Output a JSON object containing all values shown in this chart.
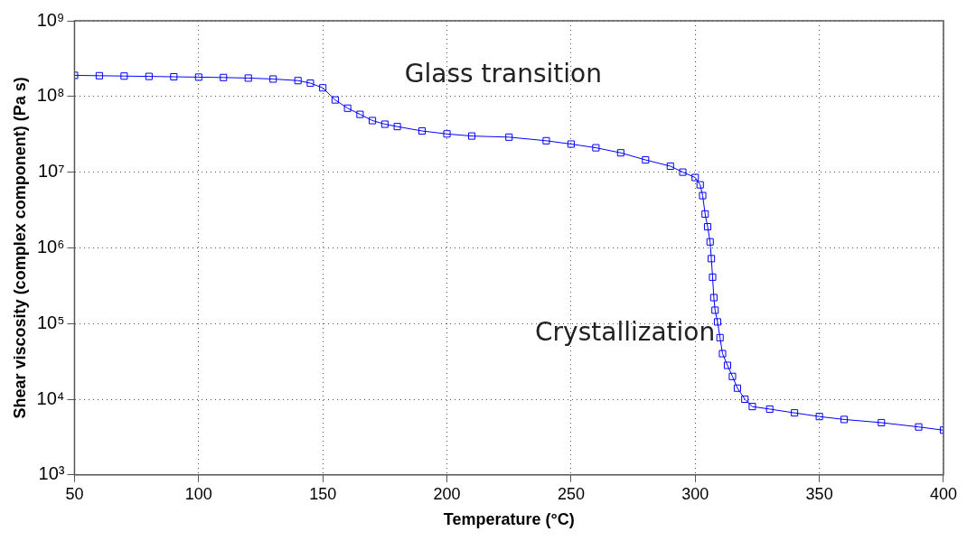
{
  "chart_data": {
    "type": "line",
    "xlabel": "Temperature (°C)",
    "ylabel": "Shear viscosity (complex component) (Pa s)",
    "x": [
      50,
      60,
      70,
      80,
      90,
      100,
      110,
      120,
      130,
      140,
      145,
      150,
      155,
      160,
      165,
      170,
      175,
      180,
      190,
      200,
      210,
      225,
      240,
      250,
      260,
      270,
      280,
      290,
      295,
      300,
      302,
      303,
      304,
      305,
      306,
      306.5,
      307,
      307.5,
      308,
      309,
      310,
      311,
      313,
      315,
      317,
      320,
      323,
      330,
      340,
      350,
      360,
      375,
      390,
      400
    ],
    "series": [
      {
        "color": "#0000ff",
        "values": [
          190000000,
          188000000,
          186000000,
          184000000,
          182000000,
          180000000,
          178000000,
          175000000,
          170000000,
          162000000,
          150000000,
          130000000,
          90000000,
          70000000,
          58000000,
          48000000,
          43000000,
          40000000,
          35000000,
          32000000,
          30000000,
          29000000,
          26000000,
          23500000,
          21000000,
          18000000,
          14500000,
          12000000,
          10000000,
          8500000,
          6800000,
          4900000,
          2800000,
          1900000,
          1200000,
          720000,
          410000,
          220000,
          150000,
          105000,
          65000,
          40000,
          28000,
          20000,
          14000,
          10000,
          8000,
          7400,
          6600,
          5900,
          5400,
          4900,
          4300,
          3900
        ]
      }
    ],
    "xlim": [
      50,
      400
    ],
    "xticks": [
      50,
      100,
      150,
      200,
      250,
      300,
      350,
      400
    ],
    "ylim": [
      1000,
      1000000000
    ],
    "yticks": [
      {
        "value": 1000,
        "label": "10³"
      },
      {
        "value": 10000,
        "label": "10⁴"
      },
      {
        "value": 100000,
        "label": "10⁵"
      },
      {
        "value": 1000000,
        "label": "10⁶"
      },
      {
        "value": 10000000,
        "label": "10⁷"
      },
      {
        "value": 100000000,
        "label": "10⁸"
      },
      {
        "value": 1000000000,
        "label": "10⁹"
      }
    ],
    "log": "y",
    "grid": true,
    "marker": "square",
    "line_style": "solid",
    "annotations": [
      "Glass transition",
      "Crystallization"
    ]
  }
}
